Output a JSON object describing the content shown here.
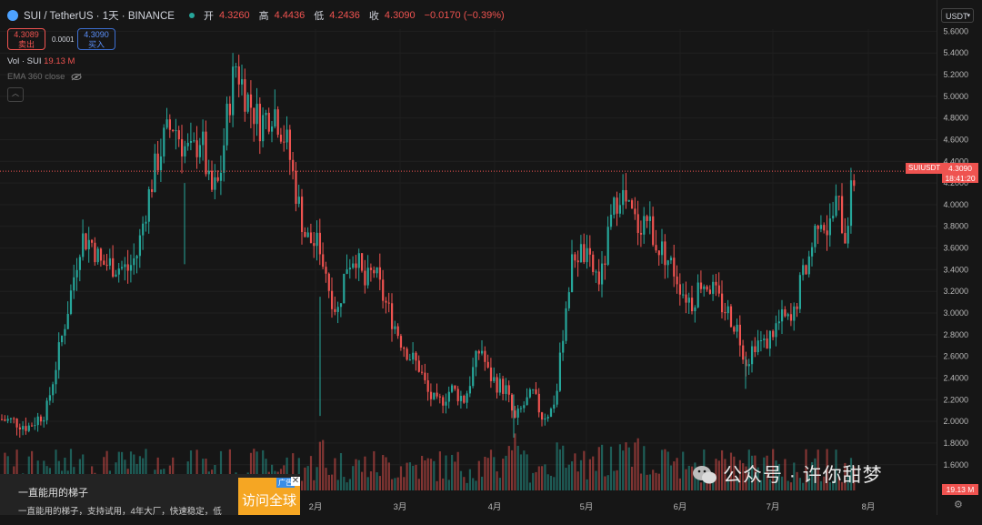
{
  "header": {
    "symbol": "SUI / TetherUS · 1天 · BINANCE",
    "ohlc": [
      {
        "label": "开",
        "value": "4.3260"
      },
      {
        "label": "高",
        "value": "4.4436"
      },
      {
        "label": "低",
        "value": "4.2436"
      },
      {
        "label": "收",
        "value": "4.3090"
      }
    ],
    "change": "−0.0170 (−0.39%)"
  },
  "trade": {
    "sell_price": "4.3089",
    "sell_label": "卖出",
    "spread": "0.0001",
    "buy_price": "4.3090",
    "buy_label": "买入"
  },
  "indicators": {
    "vol_label": "Vol · SUI",
    "vol_value": "19.13 M",
    "ema_label": "EMA 360 close"
  },
  "currency_button": "USDT",
  "price_tag": {
    "symbol": "SUIUSDT",
    "price": "4.3090",
    "countdown": "18:41:20"
  },
  "volume_tag": "19.13 M",
  "ad": {
    "title": "一直能用的梯子",
    "body": "一直能用的梯子，支持试用，4年大厂，快速稳定，低",
    "cta": "访问全球",
    "tag": "广告"
  },
  "watermark": "公众号 · 许你甜梦",
  "colors": {
    "up": "#26a69a",
    "down": "#ef5350",
    "background": "#161616",
    "grid": "#222222"
  },
  "chart_data": {
    "type": "candlestick",
    "y_axis_ticks": [
      "5.6000",
      "5.4000",
      "5.2000",
      "5.0000",
      "4.8000",
      "4.6000",
      "4.4000",
      "4.2000",
      "4.0000",
      "3.8000",
      "3.6000",
      "3.4000",
      "3.2000",
      "3.0000",
      "2.8000",
      "2.6000",
      "2.4000",
      "2.2000",
      "2.0000",
      "1.8000",
      "1.6000"
    ],
    "ylim": [
      1.43,
      5.62
    ],
    "x_axis_labels": [
      "2月",
      "3月",
      "4月",
      "5月",
      "6月",
      "7月",
      "8月"
    ],
    "grid": true,
    "last_price": 4.309,
    "close_path": [
      {
        "x": 0,
        "y": 2.02
      },
      {
        "x": 15,
        "y": 2.0
      },
      {
        "x": 30,
        "y": 1.95
      },
      {
        "x": 50,
        "y": 2.1
      },
      {
        "x": 65,
        "y": 2.7
      },
      {
        "x": 75,
        "y": 3.1
      },
      {
        "x": 88,
        "y": 3.7
      },
      {
        "x": 100,
        "y": 3.65
      },
      {
        "x": 110,
        "y": 3.45
      },
      {
        "x": 120,
        "y": 3.45
      },
      {
        "x": 140,
        "y": 3.4
      },
      {
        "x": 150,
        "y": 3.55
      },
      {
        "x": 160,
        "y": 4.0
      },
      {
        "x": 170,
        "y": 4.35
      },
      {
        "x": 180,
        "y": 4.62
      },
      {
        "x": 190,
        "y": 4.75
      },
      {
        "x": 200,
        "y": 4.55
      },
      {
        "x": 210,
        "y": 4.45
      },
      {
        "x": 220,
        "y": 4.65
      },
      {
        "x": 230,
        "y": 4.1
      },
      {
        "x": 240,
        "y": 4.2
      },
      {
        "x": 250,
        "y": 4.9
      },
      {
        "x": 258,
        "y": 5.3
      },
      {
        "x": 270,
        "y": 5.0
      },
      {
        "x": 285,
        "y": 4.75
      },
      {
        "x": 300,
        "y": 4.9
      },
      {
        "x": 315,
        "y": 4.55
      },
      {
        "x": 325,
        "y": 4.1
      },
      {
        "x": 335,
        "y": 3.7
      },
      {
        "x": 350,
        "y": 3.6
      },
      {
        "x": 360,
        "y": 3.25
      },
      {
        "x": 370,
        "y": 3.0
      },
      {
        "x": 380,
        "y": 3.45
      },
      {
        "x": 390,
        "y": 3.55
      },
      {
        "x": 400,
        "y": 3.25
      },
      {
        "x": 410,
        "y": 3.4
      },
      {
        "x": 420,
        "y": 3.15
      },
      {
        "x": 430,
        "y": 2.95
      },
      {
        "x": 440,
        "y": 2.75
      },
      {
        "x": 450,
        "y": 2.6
      },
      {
        "x": 460,
        "y": 2.5
      },
      {
        "x": 470,
        "y": 2.25
      },
      {
        "x": 480,
        "y": 2.15
      },
      {
        "x": 495,
        "y": 2.3
      },
      {
        "x": 510,
        "y": 2.2
      },
      {
        "x": 520,
        "y": 2.5
      },
      {
        "x": 528,
        "y": 2.7
      },
      {
        "x": 535,
        "y": 2.45
      },
      {
        "x": 545,
        "y": 2.35
      },
      {
        "x": 555,
        "y": 2.3
      },
      {
        "x": 565,
        "y": 2.0
      },
      {
        "x": 575,
        "y": 2.15
      },
      {
        "x": 585,
        "y": 2.25
      },
      {
        "x": 595,
        "y": 2.05
      },
      {
        "x": 605,
        "y": 2.1
      },
      {
        "x": 612,
        "y": 2.3
      },
      {
        "x": 620,
        "y": 3.0
      },
      {
        "x": 630,
        "y": 3.55
      },
      {
        "x": 640,
        "y": 3.55
      },
      {
        "x": 650,
        "y": 3.4
      },
      {
        "x": 660,
        "y": 3.3
      },
      {
        "x": 670,
        "y": 3.8
      },
      {
        "x": 680,
        "y": 4.15
      },
      {
        "x": 690,
        "y": 3.95
      },
      {
        "x": 700,
        "y": 3.8
      },
      {
        "x": 710,
        "y": 3.9
      },
      {
        "x": 720,
        "y": 3.65
      },
      {
        "x": 730,
        "y": 3.55
      },
      {
        "x": 740,
        "y": 3.4
      },
      {
        "x": 750,
        "y": 3.2
      },
      {
        "x": 760,
        "y": 3.1
      },
      {
        "x": 770,
        "y": 3.3
      },
      {
        "x": 780,
        "y": 3.25
      },
      {
        "x": 790,
        "y": 3.1
      },
      {
        "x": 800,
        "y": 3.0
      },
      {
        "x": 810,
        "y": 2.85
      },
      {
        "x": 820,
        "y": 2.55
      },
      {
        "x": 830,
        "y": 2.75
      },
      {
        "x": 840,
        "y": 2.7
      },
      {
        "x": 850,
        "y": 2.85
      },
      {
        "x": 860,
        "y": 2.95
      },
      {
        "x": 870,
        "y": 2.9
      },
      {
        "x": 880,
        "y": 3.3
      },
      {
        "x": 890,
        "y": 3.55
      },
      {
        "x": 900,
        "y": 3.95
      },
      {
        "x": 910,
        "y": 3.75
      },
      {
        "x": 920,
        "y": 4.05
      },
      {
        "x": 928,
        "y": 3.7
      },
      {
        "x": 935,
        "y": 4.1
      },
      {
        "x": 940,
        "y": 4.309
      }
    ]
  }
}
